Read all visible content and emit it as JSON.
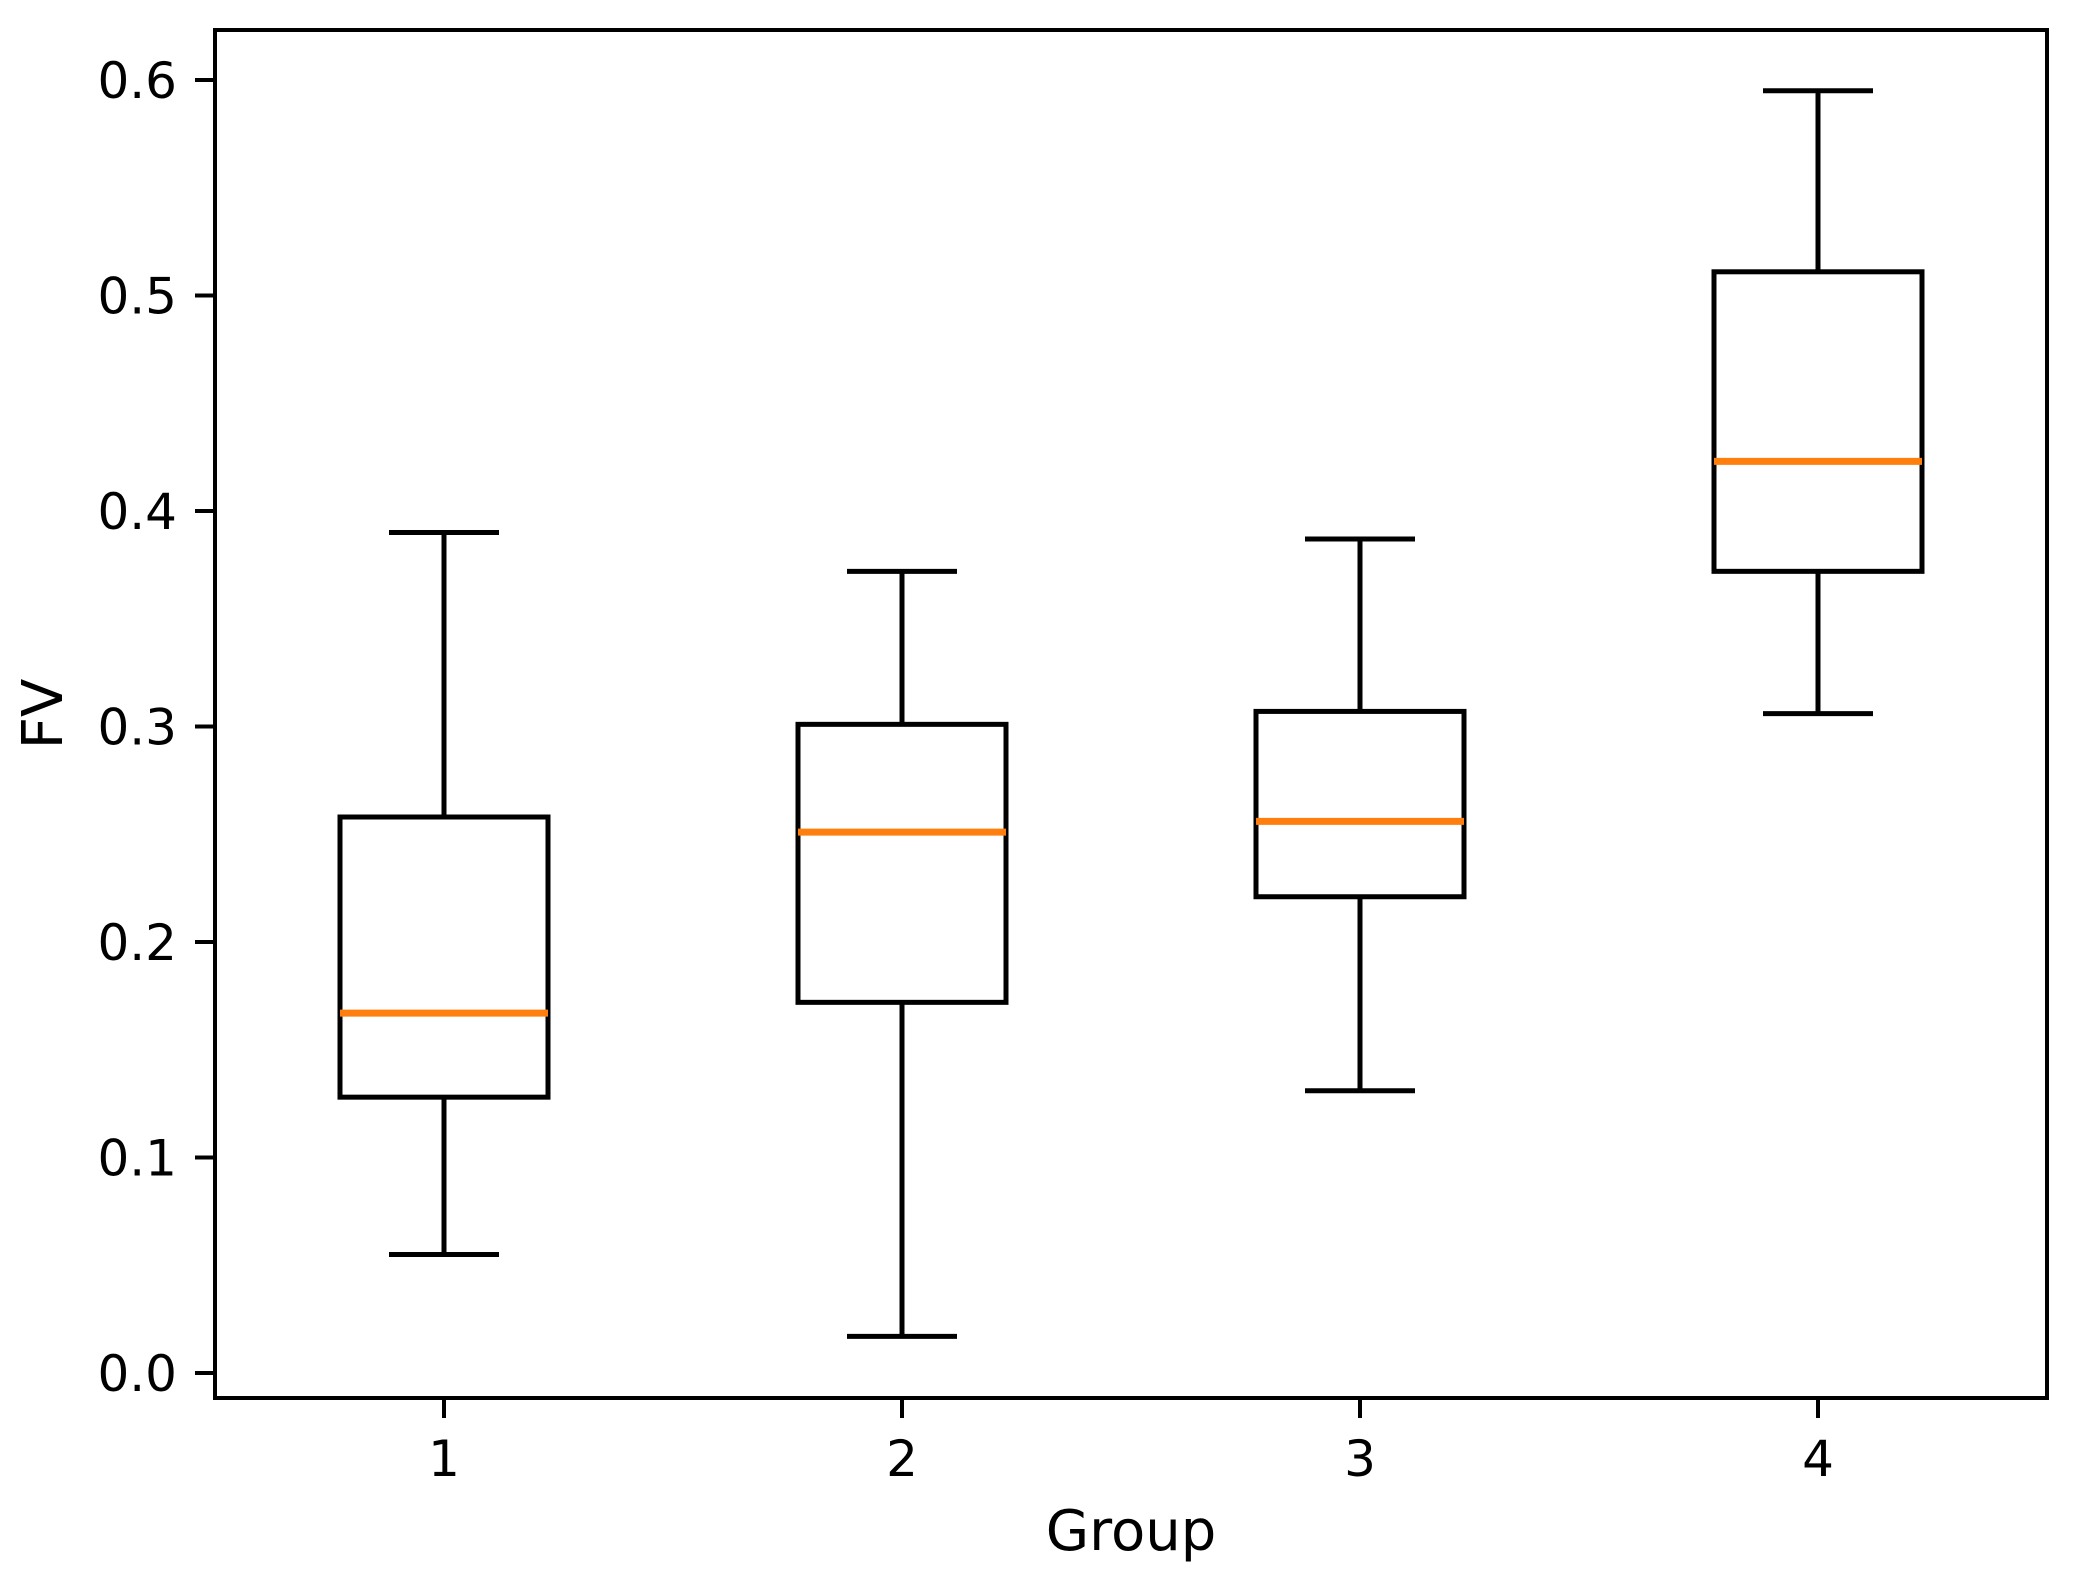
{
  "figure": {
    "background": "#ffffff",
    "line_color": "#000000",
    "median_color": "#ff7f0e"
  },
  "chart_data": {
    "type": "boxplot",
    "title": "",
    "xlabel": "Group",
    "ylabel": "FV",
    "categories": [
      "1",
      "2",
      "3",
      "4"
    ],
    "yticks": [
      0.0,
      0.1,
      0.2,
      0.3,
      0.4,
      0.5,
      0.6
    ],
    "ytick_labels": [
      "0.0",
      "0.1",
      "0.2",
      "0.3",
      "0.4",
      "0.5",
      "0.6"
    ],
    "ylim": [
      -0.0116,
      0.6232
    ],
    "xlim": [
      0.5,
      4.5
    ],
    "grid": false,
    "legend": null,
    "series": [
      {
        "group": "1",
        "whislo": 0.055,
        "q1": 0.128,
        "med": 0.167,
        "q3": 0.258,
        "whishi": 0.39
      },
      {
        "group": "2",
        "whislo": 0.017,
        "q1": 0.172,
        "med": 0.251,
        "q3": 0.301,
        "whishi": 0.372
      },
      {
        "group": "3",
        "whislo": 0.131,
        "q1": 0.221,
        "med": 0.256,
        "q3": 0.307,
        "whishi": 0.387
      },
      {
        "group": "4",
        "whislo": 0.306,
        "q1": 0.372,
        "med": 0.423,
        "q3": 0.511,
        "whishi": 0.595
      }
    ]
  }
}
